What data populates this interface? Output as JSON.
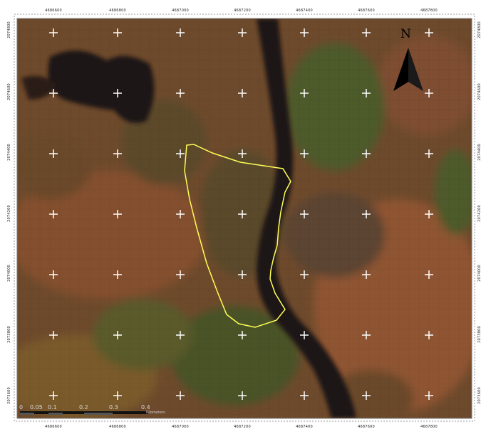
{
  "map": {
    "north_label": "N",
    "colors": {
      "boundary": "#ffff55",
      "grid_cross": "#ffffff",
      "river": "#1a1414",
      "frame": "#888888"
    },
    "icons": [
      "north-arrow-icon",
      "grid-cross-icon"
    ]
  },
  "ticks": {
    "top": [
      "4686600",
      "4686800",
      "4687000",
      "4687200",
      "4687400",
      "4687600",
      "4687800"
    ],
    "bottom": [
      "4686600",
      "4686800",
      "4687000",
      "4687200",
      "4687400",
      "4687600",
      "4687800"
    ],
    "left": [
      "2074800",
      "2074600",
      "2074400",
      "2074200",
      "2074000",
      "2073800",
      "2073600"
    ],
    "right": [
      "2074800",
      "2074600",
      "2074400",
      "2074200",
      "2074000",
      "2073800",
      "2073600"
    ]
  },
  "scale_bar": {
    "labels": [
      "0",
      "0.05",
      "0.1",
      "0.2",
      "0.3",
      "0.4"
    ],
    "units": "Kilometers"
  }
}
